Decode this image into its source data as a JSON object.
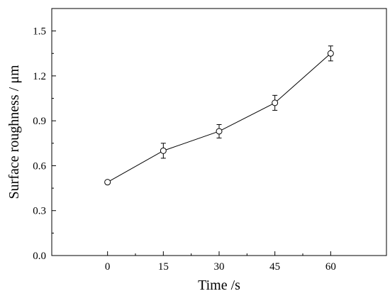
{
  "chart_data": {
    "type": "line",
    "title": "",
    "xlabel": "Time /s",
    "ylabel": "Surface roughness / μm",
    "xlim": [
      -15,
      75
    ],
    "ylim": [
      0.0,
      1.65
    ],
    "x_ticks": [
      0,
      15,
      30,
      45,
      60
    ],
    "x_tick_labels": [
      "0",
      "15",
      "30",
      "45",
      "60"
    ],
    "y_ticks": [
      0.0,
      0.3,
      0.6,
      0.9,
      1.2,
      1.5
    ],
    "y_tick_labels": [
      "0.0",
      "0.3",
      "0.6",
      "0.9",
      "1.2",
      "1.5"
    ],
    "grid": false,
    "legend": "none",
    "marker": "open-circle",
    "series": [
      {
        "x": [
          0,
          15,
          30,
          45,
          60
        ],
        "y": [
          0.49,
          0.7,
          0.83,
          1.02,
          1.35
        ],
        "error": [
          0.01,
          0.05,
          0.045,
          0.05,
          0.05
        ]
      }
    ]
  }
}
